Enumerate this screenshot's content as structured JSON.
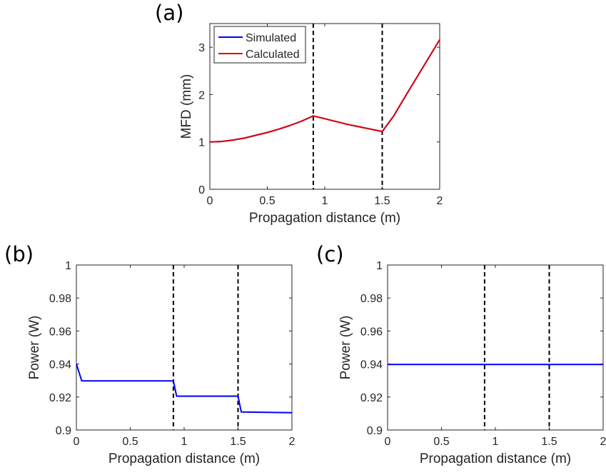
{
  "chart_data": [
    {
      "type": "line",
      "panel_label": "(a)",
      "xlabel": "Propagation distance (m)",
      "ylabel": "MFD (mm)",
      "xlim": [
        0,
        2
      ],
      "ylim": [
        0,
        3.5
      ],
      "xticks": [
        0,
        0.5,
        1,
        1.5,
        2
      ],
      "xtick_labels": [
        "0",
        "0.5",
        "1",
        "1.5",
        "2"
      ],
      "yticks": [
        0,
        1,
        2,
        3
      ],
      "ytick_labels": [
        "0",
        "1",
        "2",
        "3"
      ],
      "vlines": [
        0.9,
        1.5
      ],
      "legend": {
        "position": "top-left",
        "entries": [
          "Simulated",
          "Calculated"
        ]
      },
      "series": [
        {
          "name": "Simulated",
          "color": "#0000ff",
          "x": [
            0,
            0.1,
            0.2,
            0.3,
            0.4,
            0.5,
            0.6,
            0.7,
            0.8,
            0.9,
            1.0,
            1.1,
            1.2,
            1.3,
            1.4,
            1.5,
            1.6,
            1.7,
            1.8,
            1.9,
            2.0
          ],
          "y": [
            1.0,
            1.01,
            1.04,
            1.08,
            1.14,
            1.2,
            1.27,
            1.35,
            1.44,
            1.55,
            1.49,
            1.43,
            1.37,
            1.32,
            1.27,
            1.22,
            1.55,
            1.96,
            2.36,
            2.76,
            3.16
          ]
        },
        {
          "name": "Calculated",
          "color": "#e00000",
          "x": [
            0,
            0.1,
            0.2,
            0.3,
            0.4,
            0.5,
            0.6,
            0.7,
            0.8,
            0.9,
            1.0,
            1.1,
            1.2,
            1.3,
            1.4,
            1.5,
            1.6,
            1.7,
            1.8,
            1.9,
            2.0
          ],
          "y": [
            1.0,
            1.01,
            1.04,
            1.08,
            1.14,
            1.2,
            1.27,
            1.35,
            1.44,
            1.55,
            1.49,
            1.43,
            1.37,
            1.32,
            1.27,
            1.22,
            1.55,
            1.96,
            2.36,
            2.76,
            3.16
          ]
        }
      ]
    },
    {
      "type": "line",
      "panel_label": "(b)",
      "xlabel": "Propagation distance (m)",
      "ylabel": "Power (W)",
      "xlim": [
        0,
        2
      ],
      "ylim": [
        0.9,
        1
      ],
      "xticks": [
        0,
        0.5,
        1,
        1.5,
        2
      ],
      "xtick_labels": [
        "0",
        "0.5",
        "1",
        "1.5",
        "2"
      ],
      "yticks": [
        0.9,
        0.92,
        0.94,
        0.96,
        0.98,
        1
      ],
      "ytick_labels": [
        "0.9",
        "0.92",
        "0.94",
        "0.96",
        "0.98",
        "1"
      ],
      "vlines": [
        0.9,
        1.5
      ],
      "series": [
        {
          "color": "#0000ff",
          "x": [
            0,
            0.05,
            0.9,
            0.93,
            1.5,
            1.53,
            2.0
          ],
          "y": [
            0.94,
            0.9298,
            0.9298,
            0.9205,
            0.9205,
            0.9109,
            0.9105
          ]
        }
      ]
    },
    {
      "type": "line",
      "panel_label": "(c)",
      "xlabel": "Propagation distance (m)",
      "ylabel": "Power (W)",
      "xlim": [
        0,
        2
      ],
      "ylim": [
        0.9,
        1
      ],
      "xticks": [
        0,
        0.5,
        1,
        1.5,
        2
      ],
      "xtick_labels": [
        "0",
        "0.5",
        "1",
        "1.5",
        "2"
      ],
      "yticks": [
        0.9,
        0.92,
        0.94,
        0.96,
        0.98,
        1
      ],
      "ytick_labels": [
        "0.9",
        "0.92",
        "0.94",
        "0.96",
        "0.98",
        "1"
      ],
      "vlines": [
        0.9,
        1.5
      ],
      "series": [
        {
          "color": "#0000ff",
          "x": [
            0,
            2
          ],
          "y": [
            0.9397,
            0.9397
          ]
        }
      ]
    }
  ]
}
